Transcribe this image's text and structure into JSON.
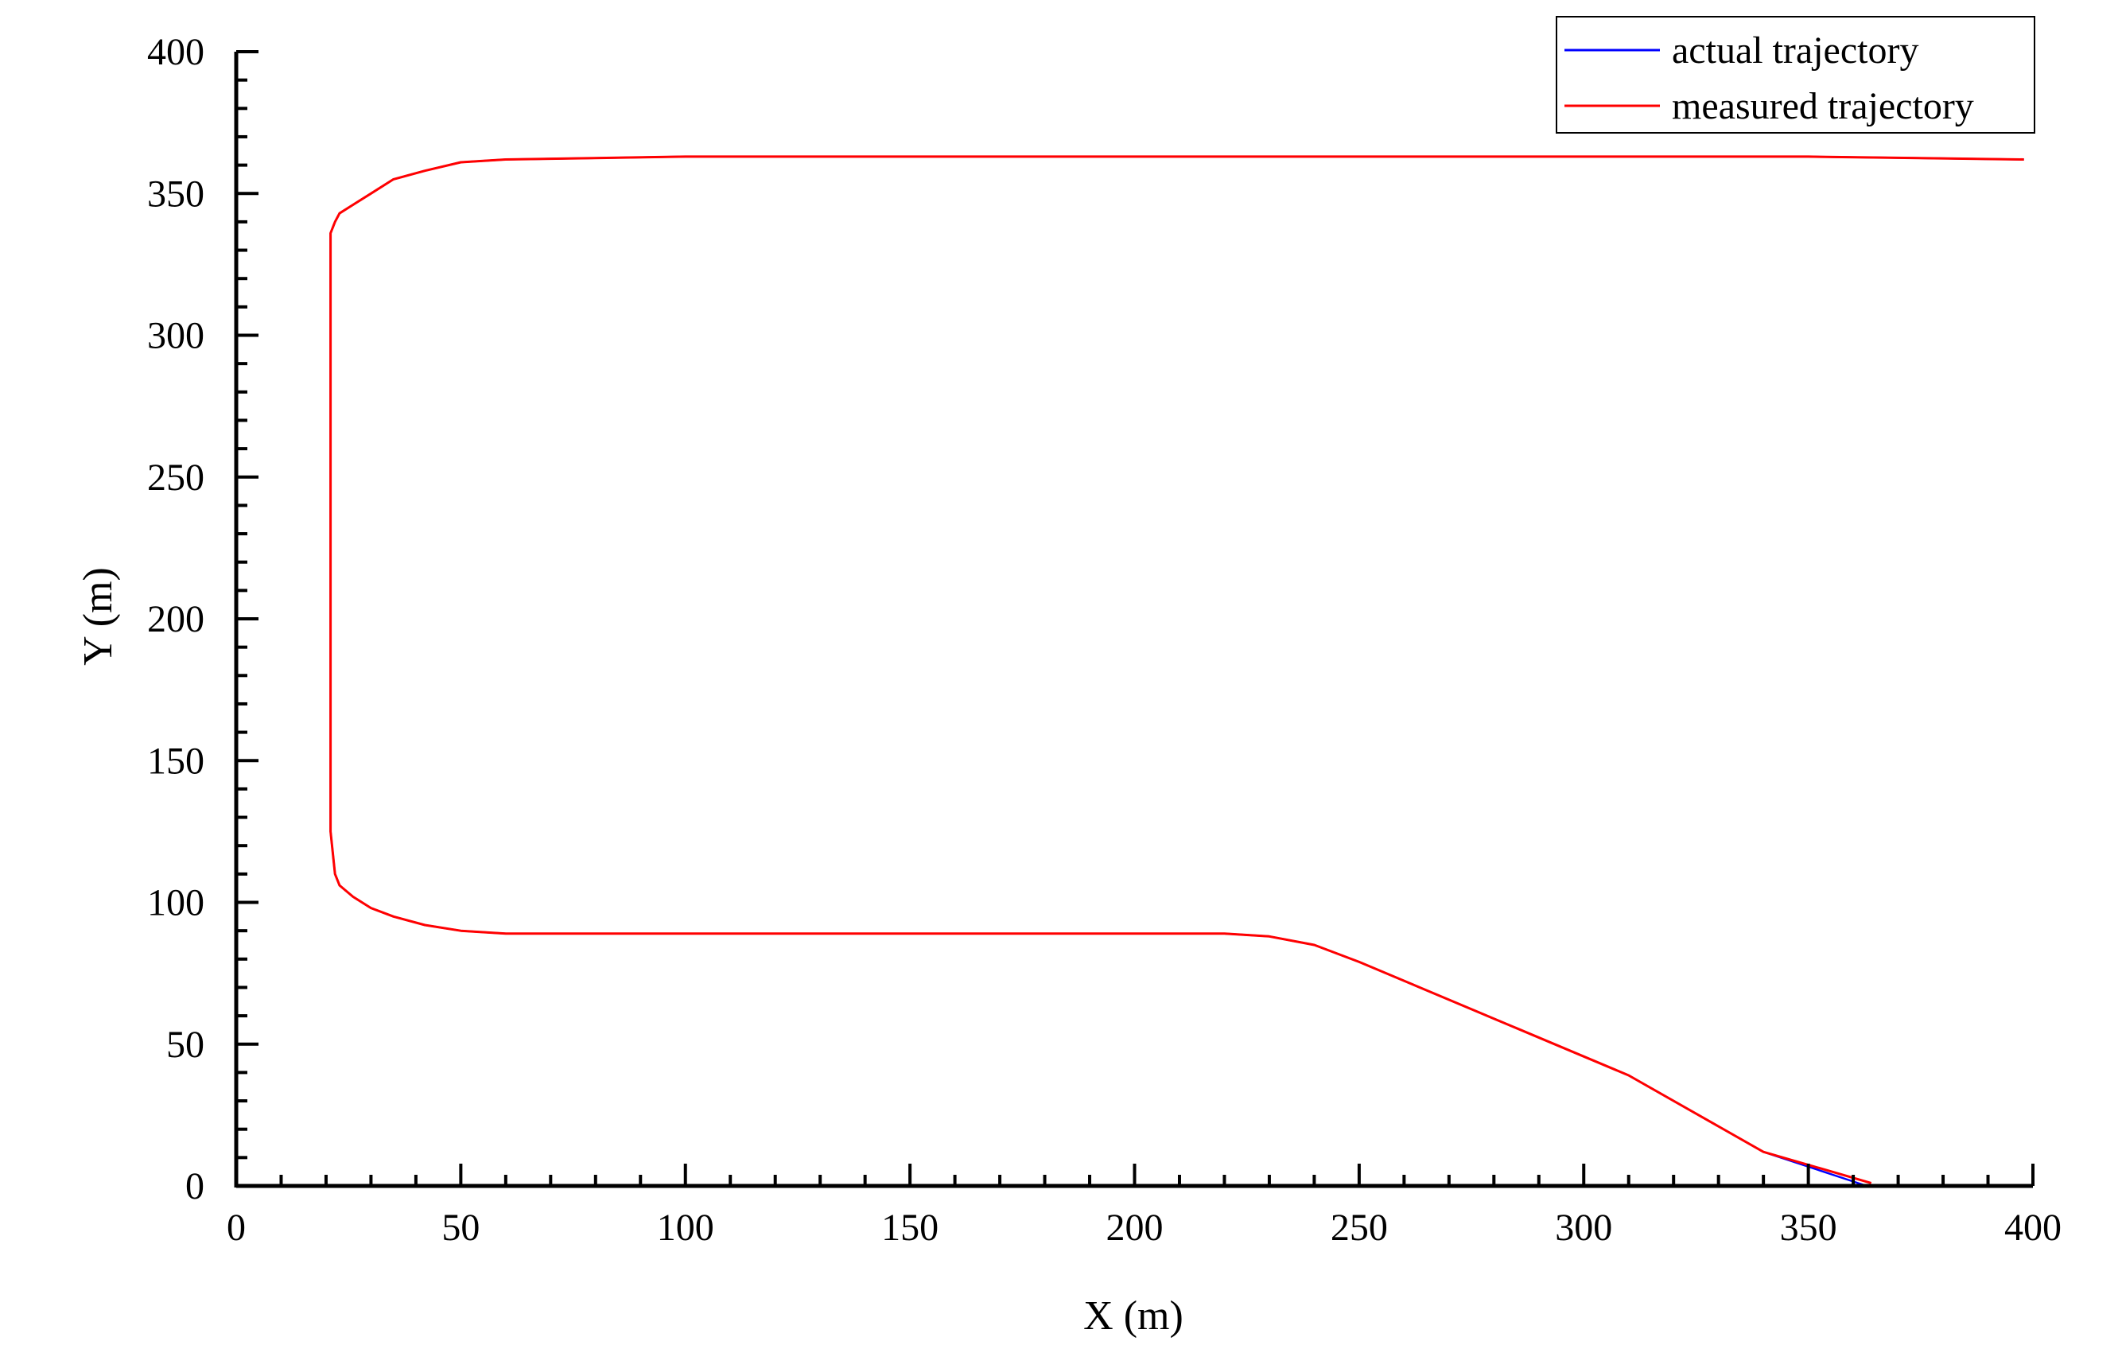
{
  "chart_data": {
    "type": "line",
    "title": "",
    "xlabel": "X (m)",
    "ylabel": "Y (m)",
    "xlim": [
      0,
      400
    ],
    "ylim": [
      0,
      400
    ],
    "xticks": [
      0,
      50,
      100,
      150,
      200,
      250,
      300,
      350,
      400
    ],
    "yticks": [
      0,
      50,
      100,
      150,
      200,
      250,
      300,
      350,
      400
    ],
    "grid": false,
    "legend_position": "top-right",
    "series": [
      {
        "name": "actual trajectory",
        "color": "#0000ff",
        "x": [
          363,
          340,
          310,
          280,
          250,
          240,
          230,
          220,
          200,
          150,
          100,
          60,
          50,
          42,
          35,
          30,
          26,
          23,
          22,
          21,
          21,
          21,
          21,
          21,
          22,
          23,
          26,
          30,
          35,
          42,
          50,
          60,
          100,
          150,
          200,
          250,
          300,
          350,
          398
        ],
        "y": [
          0,
          12,
          39,
          59,
          79,
          85,
          88,
          89,
          89,
          89,
          89,
          89,
          90,
          92,
          95,
          98,
          102,
          106,
          110,
          125,
          200,
          300,
          330,
          336,
          340,
          343,
          346,
          350,
          355,
          358,
          361,
          362,
          363,
          363,
          363,
          363,
          363,
          363,
          362
        ]
      },
      {
        "name": "measured trajectory",
        "color": "#ff0000",
        "x": [
          364,
          340,
          310,
          280,
          250,
          240,
          230,
          220,
          200,
          150,
          100,
          60,
          50,
          42,
          35,
          30,
          26,
          23,
          22,
          21,
          21,
          21,
          21,
          21,
          22,
          23,
          26,
          30,
          35,
          42,
          50,
          60,
          100,
          150,
          200,
          250,
          300,
          350,
          398
        ],
        "y": [
          1,
          12,
          39,
          59,
          79,
          85,
          88,
          89,
          89,
          89,
          89,
          89,
          90,
          92,
          95,
          98,
          102,
          106,
          110,
          125,
          200,
          300,
          330,
          336,
          340,
          343,
          346,
          350,
          355,
          358,
          361,
          362,
          363,
          363,
          363,
          363,
          363,
          363,
          362
        ]
      }
    ]
  }
}
